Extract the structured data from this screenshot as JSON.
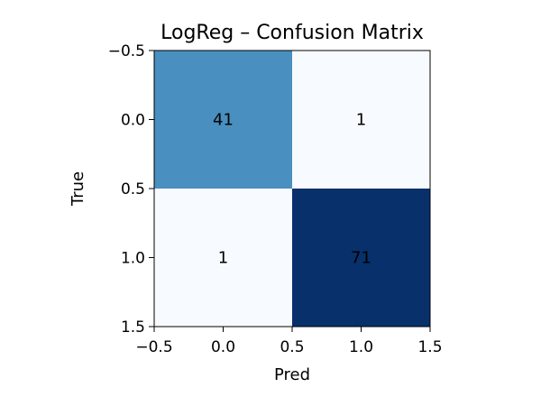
{
  "chart_data": {
    "type": "heatmap",
    "title": "LogReg – Confusion Matrix",
    "xlabel": "Pred",
    "ylabel": "True",
    "xlim": [
      -0.5,
      1.5
    ],
    "ylim": [
      1.5,
      -0.5
    ],
    "xticks": [
      -0.5,
      0.0,
      0.5,
      1.0,
      1.5
    ],
    "yticks": [
      -0.5,
      0.0,
      0.5,
      1.0,
      1.5
    ],
    "xtick_labels": [
      "−0.5",
      "0.0",
      "0.5",
      "1.0",
      "1.5"
    ],
    "ytick_labels": [
      "−0.5",
      "0.0",
      "0.5",
      "1.0",
      "1.5"
    ],
    "matrix": [
      [
        41,
        1
      ],
      [
        1,
        71
      ]
    ],
    "cell_labels": [
      [
        "41",
        "1"
      ],
      [
        "1",
        "71"
      ]
    ],
    "colormap": "Blues",
    "colors": {
      "low": "#f7fbff",
      "mid": "#549fcd",
      "high": "#08306b"
    },
    "grid": false
  }
}
